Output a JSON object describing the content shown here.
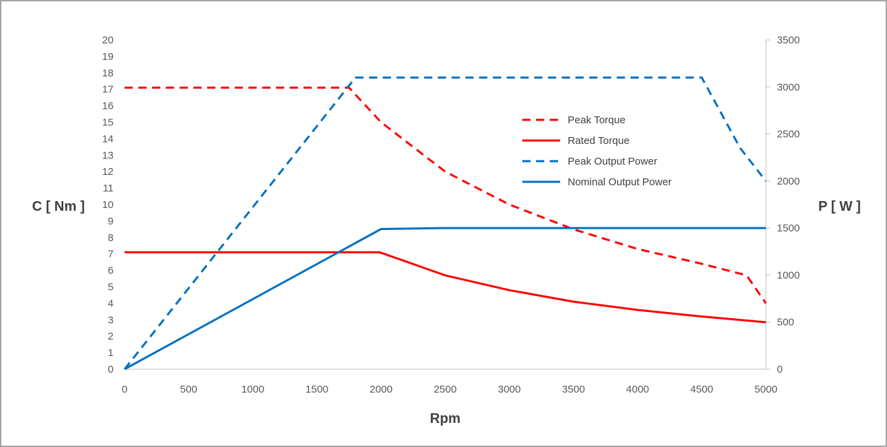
{
  "chart_data": {
    "type": "line",
    "xlabel": "Rpm",
    "ylabel_left": "C [ Nm ]",
    "ylabel_right": "P [ W ]",
    "x_ticks": [
      0,
      500,
      1000,
      1500,
      2000,
      2500,
      3000,
      3500,
      4000,
      4500,
      5000
    ],
    "y_left_ticks": [
      0,
      1,
      2,
      3,
      4,
      5,
      6,
      7,
      8,
      9,
      10,
      11,
      12,
      13,
      14,
      15,
      16,
      17,
      18,
      19,
      20
    ],
    "y_right_ticks": [
      0,
      500,
      1000,
      1500,
      2000,
      2500,
      3000,
      3500
    ],
    "xlim": [
      0,
      5000
    ],
    "ylim_left": [
      0,
      20
    ],
    "ylim_right": [
      0,
      3500
    ],
    "grid": false,
    "legend_position": "center-right",
    "series": [
      {
        "name": "Peak Torque",
        "axis": "left",
        "color": "#ff0000",
        "dash": true,
        "x": [
          0,
          1750,
          2000,
          2500,
          3000,
          3500,
          4000,
          4500,
          4850,
          5000
        ],
        "y": [
          17.1,
          17.1,
          15.0,
          12.0,
          10.0,
          8.5,
          7.3,
          6.4,
          5.7,
          4.0
        ]
      },
      {
        "name": "Rated Torque",
        "axis": "left",
        "color": "#ff0000",
        "dash": false,
        "x": [
          0,
          1000,
          1990,
          2500,
          3000,
          3500,
          4000,
          4500,
          5000
        ],
        "y": [
          7.1,
          7.1,
          7.1,
          5.7,
          4.8,
          4.1,
          3.6,
          3.2,
          2.85
        ]
      },
      {
        "name": "Peak Output Power",
        "axis": "right",
        "color": "#0070c0",
        "dash": true,
        "x": [
          0,
          1800,
          4500,
          4800,
          5000
        ],
        "y": [
          0,
          3100,
          3100,
          2350,
          2000
        ]
      },
      {
        "name": "Nominal Output Power",
        "axis": "right",
        "color": "#0070c0",
        "dash": false,
        "x": [
          0,
          2000,
          2500,
          5000
        ],
        "y": [
          0,
          1490,
          1500,
          1500
        ]
      }
    ]
  }
}
